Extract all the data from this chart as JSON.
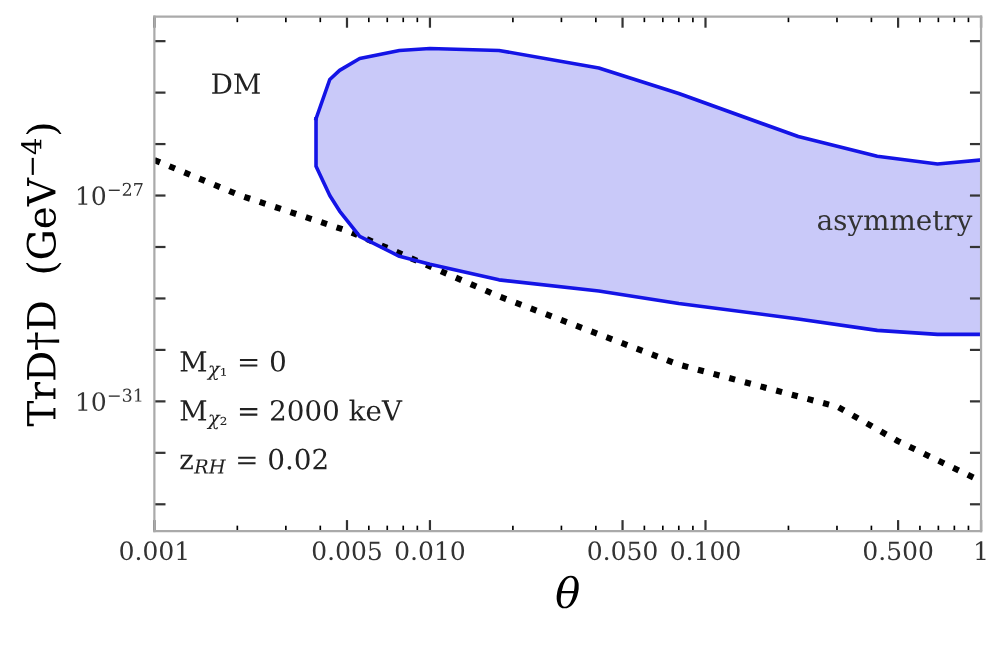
{
  "chart_data": {
    "type": "line",
    "xlabel": "θ",
    "ylabel": "TrD†D  (GeV$^{−4}$)",
    "log": "xy",
    "xlim": [
      0.001,
      1
    ],
    "ylim": [
      3e-34,
      3e-24
    ],
    "xticks": [
      {
        "value": 0.001,
        "label": "0.001"
      },
      {
        "value": 0.005,
        "label": "0.005"
      },
      {
        "value": 0.01,
        "label": "0.010"
      },
      {
        "value": 0.05,
        "label": "0.050"
      },
      {
        "value": 0.1,
        "label": "0.100"
      },
      {
        "value": 0.5,
        "label": "0.500"
      },
      1
    ],
    "yticks": [
      {
        "value": 1e-33,
        "label": null
      },
      {
        "value": 1e-32,
        "label": null
      },
      {
        "value": 1e-31,
        "label": "10$^{−31}$"
      },
      {
        "value": 1e-30,
        "label": null
      },
      {
        "value": 1e-29,
        "label": null
      },
      {
        "value": 1e-28,
        "label": null
      },
      {
        "value": 1e-27,
        "label": "10$^{−27}$"
      },
      {
        "value": 1e-26,
        "label": null
      },
      {
        "value": 1e-25,
        "label": null
      },
      {
        "value": 1e-24,
        "label": null
      }
    ],
    "grid": false,
    "legend": false,
    "series": [
      {
        "name": "DM",
        "color": "#000000",
        "line_style": "dotted",
        "x": [
          0.001,
          0.00205,
          0.0051,
          0.0178,
          0.0798,
          0.302,
          0.498,
          1
        ],
        "values": [
          4.9e-27,
          1e-27,
          2e-28,
          1.1e-29,
          5.2e-31,
          7.8e-32,
          1.7e-32,
          2.8e-33
        ]
      },
      {
        "name": "asymmetry",
        "type": "area",
        "color": "#1414e6",
        "x": [
          0.00386,
          0.00433,
          0.0047,
          0.00556,
          0.00775,
          0.01,
          0.0178,
          0.041,
          0.08,
          0.217,
          0.42,
          0.695,
          1
        ],
        "values": [
          3.1e-26,
          1.8e-25,
          2.7e-25,
          4.6e-25,
          6.6e-25,
          7.2e-25,
          6.6e-25,
          3e-25,
          9.6e-26,
          1.4e-26,
          5.8e-27,
          4.1e-27,
          4.9e-27
        ]
      },
      {
        "color": "#1414e6",
        "x": [
          0.00386,
          0.00386,
          0.00433,
          0.0047,
          0.00556,
          0.00775,
          0.01,
          0.0178,
          0.041,
          0.08,
          0.217,
          0.42,
          0.695,
          1
        ],
        "values": [
          3.1e-26,
          3.7e-27,
          1e-27,
          5e-28,
          1.6e-28,
          6.6e-29,
          4.6e-29,
          2.3e-29,
          1.4e-29,
          8e-30,
          4e-30,
          2.4e-30,
          2e-30,
          2e-30
        ]
      }
    ],
    "annotations": [
      "M$_{χ₁}$ = 0",
      "M$_{χ₂}$ = 2000 keV",
      "z$_{RH}$ = 0.02"
    ]
  }
}
